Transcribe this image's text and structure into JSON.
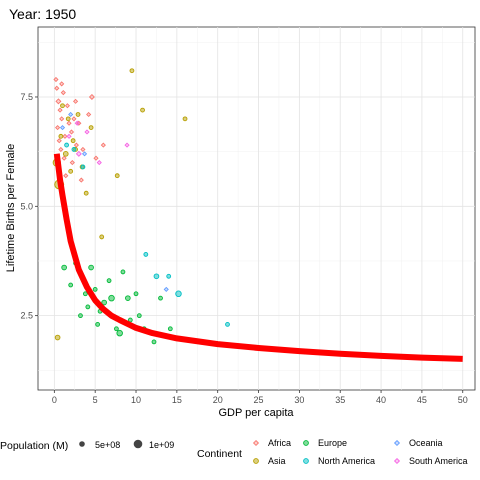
{
  "chart_data": {
    "type": "scatter",
    "title": "Year: 1950",
    "xlabel": "GDP per capita",
    "ylabel": "Lifetime Births per Female",
    "xlim": [
      -2,
      51.5
    ],
    "ylim": [
      0.8,
      9.1
    ],
    "x_ticks": [
      0,
      5,
      10,
      15,
      20,
      25,
      30,
      35,
      40,
      45,
      50
    ],
    "x_tick_labels": [
      "0",
      "5",
      "10",
      "15",
      "20",
      "25",
      "30",
      "35",
      "40",
      "45",
      "50"
    ],
    "y_ticks": [
      2.5,
      5.0,
      7.5
    ],
    "y_tick_labels": [
      "2.5",
      "5.0",
      "7.5"
    ],
    "grid": true,
    "legend_position": "bottom",
    "size_legend": {
      "title": "Population (M)",
      "entries": [
        {
          "label": "5e+08",
          "value": 500000000
        },
        {
          "label": "1e+09",
          "value": 1000000000
        }
      ]
    },
    "color_legend": {
      "title": "Continent",
      "entries": [
        {
          "name": "Africa",
          "color": "#F8766D",
          "shape": "diamond"
        },
        {
          "name": "Asia",
          "color": "#B79F00",
          "shape": "circle"
        },
        {
          "name": "Europe",
          "color": "#00BA38",
          "shape": "circle"
        },
        {
          "name": "North America",
          "color": "#00BFC4",
          "shape": "circle"
        },
        {
          "name": "Oceania",
          "color": "#619CFF",
          "shape": "diamond"
        },
        {
          "name": "South America",
          "color": "#F564E3",
          "shape": "diamond"
        }
      ]
    },
    "trend_line": {
      "color": "#FF0000",
      "points": [
        [
          0.3,
          6.2
        ],
        [
          0.7,
          5.6
        ],
        [
          1.0,
          5.25
        ],
        [
          1.5,
          4.7
        ],
        [
          2.0,
          4.2
        ],
        [
          3.0,
          3.55
        ],
        [
          4.0,
          3.15
        ],
        [
          5.0,
          2.85
        ],
        [
          6.0,
          2.65
        ],
        [
          7.0,
          2.5
        ],
        [
          8.0,
          2.4
        ],
        [
          10.0,
          2.22
        ],
        [
          12.0,
          2.1
        ],
        [
          15.0,
          1.98
        ],
        [
          20.0,
          1.85
        ],
        [
          25.0,
          1.76
        ],
        [
          30.0,
          1.69
        ],
        [
          35.0,
          1.63
        ],
        [
          40.0,
          1.58
        ],
        [
          45.0,
          1.54
        ],
        [
          50.0,
          1.51
        ]
      ]
    },
    "points": [
      {
        "continent": "Africa",
        "x": 0.2,
        "y": 7.9,
        "size": 1
      },
      {
        "continent": "Africa",
        "x": 0.3,
        "y": 7.7,
        "size": 1
      },
      {
        "continent": "Africa",
        "x": 0.5,
        "y": 7.4,
        "size": 1.5
      },
      {
        "continent": "Africa",
        "x": 0.7,
        "y": 7.2,
        "size": 1
      },
      {
        "continent": "Africa",
        "x": 0.9,
        "y": 7.0,
        "size": 1
      },
      {
        "continent": "Africa",
        "x": 0.4,
        "y": 6.8,
        "size": 1
      },
      {
        "continent": "Africa",
        "x": 1.1,
        "y": 7.6,
        "size": 1
      },
      {
        "continent": "Africa",
        "x": 1.3,
        "y": 6.6,
        "size": 1
      },
      {
        "continent": "Africa",
        "x": 0.6,
        "y": 6.5,
        "size": 1
      },
      {
        "continent": "Africa",
        "x": 1.6,
        "y": 7.3,
        "size": 1
      },
      {
        "continent": "Africa",
        "x": 1.8,
        "y": 6.9,
        "size": 1
      },
      {
        "continent": "Africa",
        "x": 0.8,
        "y": 6.3,
        "size": 1
      },
      {
        "continent": "Africa",
        "x": 2.1,
        "y": 6.7,
        "size": 1
      },
      {
        "continent": "Africa",
        "x": 2.4,
        "y": 7.0,
        "size": 1
      },
      {
        "continent": "Africa",
        "x": 1.2,
        "y": 6.1,
        "size": 1
      },
      {
        "continent": "Africa",
        "x": 2.7,
        "y": 6.4,
        "size": 1
      },
      {
        "continent": "Africa",
        "x": 3.0,
        "y": 6.9,
        "size": 1
      },
      {
        "continent": "Africa",
        "x": 0.5,
        "y": 5.9,
        "size": 1
      },
      {
        "continent": "Africa",
        "x": 3.5,
        "y": 6.3,
        "size": 1
      },
      {
        "continent": "Africa",
        "x": 4.2,
        "y": 7.1,
        "size": 1
      },
      {
        "continent": "Africa",
        "x": 4.6,
        "y": 7.5,
        "size": 1.5
      },
      {
        "continent": "Africa",
        "x": 1.4,
        "y": 5.7,
        "size": 1
      },
      {
        "continent": "Africa",
        "x": 2.2,
        "y": 6.0,
        "size": 1
      },
      {
        "continent": "Africa",
        "x": 3.3,
        "y": 5.6,
        "size": 1
      },
      {
        "continent": "Africa",
        "x": 5.1,
        "y": 6.1,
        "size": 1
      },
      {
        "continent": "Africa",
        "x": 6.0,
        "y": 6.4,
        "size": 1
      },
      {
        "continent": "Africa",
        "x": 0.9,
        "y": 7.8,
        "size": 1
      },
      {
        "continent": "Africa",
        "x": 2.6,
        "y": 7.4,
        "size": 1
      },
      {
        "continent": "Asia",
        "x": 0.3,
        "y": 6.0,
        "size": 3
      },
      {
        "continent": "Asia",
        "x": 0.6,
        "y": 5.5,
        "size": 4
      },
      {
        "continent": "Asia",
        "x": 0.8,
        "y": 6.6,
        "size": 1
      },
      {
        "continent": "Asia",
        "x": 1.0,
        "y": 7.3,
        "size": 1
      },
      {
        "continent": "Asia",
        "x": 1.4,
        "y": 6.2,
        "size": 1.5
      },
      {
        "continent": "Asia",
        "x": 1.7,
        "y": 7.0,
        "size": 1
      },
      {
        "continent": "Asia",
        "x": 2.0,
        "y": 5.8,
        "size": 1
      },
      {
        "continent": "Asia",
        "x": 2.3,
        "y": 6.5,
        "size": 1
      },
      {
        "continent": "Asia",
        "x": 2.9,
        "y": 7.1,
        "size": 1
      },
      {
        "continent": "Asia",
        "x": 3.4,
        "y": 5.9,
        "size": 1
      },
      {
        "continent": "Asia",
        "x": 3.9,
        "y": 5.3,
        "size": 1
      },
      {
        "continent": "Asia",
        "x": 4.5,
        "y": 6.8,
        "size": 1
      },
      {
        "continent": "Asia",
        "x": 5.8,
        "y": 4.3,
        "size": 1
      },
      {
        "continent": "Asia",
        "x": 7.7,
        "y": 5.7,
        "size": 1
      },
      {
        "continent": "Asia",
        "x": 9.5,
        "y": 8.1,
        "size": 1
      },
      {
        "continent": "Asia",
        "x": 10.8,
        "y": 7.2,
        "size": 1
      },
      {
        "continent": "Asia",
        "x": 16.0,
        "y": 7.0,
        "size": 1
      },
      {
        "continent": "Asia",
        "x": 0.4,
        "y": 2.0,
        "size": 1.5
      },
      {
        "continent": "Asia",
        "x": 1.2,
        "y": 5.0,
        "size": 1
      },
      {
        "continent": "Asia",
        "x": 2.6,
        "y": 6.3,
        "size": 1
      },
      {
        "continent": "Europe",
        "x": 1.2,
        "y": 3.6,
        "size": 1.5
      },
      {
        "continent": "Europe",
        "x": 2.6,
        "y": 3.7,
        "size": 1
      },
      {
        "continent": "Europe",
        "x": 3.2,
        "y": 2.5,
        "size": 1
      },
      {
        "continent": "Europe",
        "x": 3.8,
        "y": 3.0,
        "size": 1
      },
      {
        "continent": "Europe",
        "x": 4.5,
        "y": 3.6,
        "size": 1.5
      },
      {
        "continent": "Europe",
        "x": 5.0,
        "y": 3.1,
        "size": 1
      },
      {
        "continent": "Europe",
        "x": 5.6,
        "y": 2.6,
        "size": 1
      },
      {
        "continent": "Europe",
        "x": 6.1,
        "y": 2.8,
        "size": 1.5
      },
      {
        "continent": "Europe",
        "x": 6.7,
        "y": 3.3,
        "size": 1
      },
      {
        "continent": "Europe",
        "x": 7.0,
        "y": 2.9,
        "size": 2
      },
      {
        "continent": "Europe",
        "x": 7.6,
        "y": 2.2,
        "size": 1
      },
      {
        "continent": "Europe",
        "x": 8.0,
        "y": 2.1,
        "size": 2
      },
      {
        "continent": "Europe",
        "x": 8.4,
        "y": 3.5,
        "size": 1
      },
      {
        "continent": "Europe",
        "x": 9.0,
        "y": 2.9,
        "size": 1.5
      },
      {
        "continent": "Europe",
        "x": 9.3,
        "y": 2.4,
        "size": 1
      },
      {
        "continent": "Europe",
        "x": 10.0,
        "y": 3.0,
        "size": 1
      },
      {
        "continent": "Europe",
        "x": 10.4,
        "y": 2.5,
        "size": 1
      },
      {
        "continent": "Europe",
        "x": 11.0,
        "y": 2.2,
        "size": 1
      },
      {
        "continent": "Europe",
        "x": 12.2,
        "y": 1.9,
        "size": 1
      },
      {
        "continent": "Europe",
        "x": 13.0,
        "y": 2.9,
        "size": 1
      },
      {
        "continent": "Europe",
        "x": 14.2,
        "y": 2.2,
        "size": 1
      },
      {
        "continent": "Europe",
        "x": 4.1,
        "y": 2.7,
        "size": 1
      },
      {
        "continent": "Europe",
        "x": 2.0,
        "y": 3.2,
        "size": 1
      },
      {
        "continent": "Europe",
        "x": 5.3,
        "y": 2.3,
        "size": 1
      },
      {
        "continent": "North America",
        "x": 1.5,
        "y": 6.4,
        "size": 1
      },
      {
        "continent": "North America",
        "x": 2.4,
        "y": 6.3,
        "size": 1
      },
      {
        "continent": "North America",
        "x": 3.5,
        "y": 5.9,
        "size": 1
      },
      {
        "continent": "North America",
        "x": 11.2,
        "y": 3.9,
        "size": 1
      },
      {
        "continent": "North America",
        "x": 12.5,
        "y": 3.4,
        "size": 1.5
      },
      {
        "continent": "North America",
        "x": 14.0,
        "y": 3.4,
        "size": 1
      },
      {
        "continent": "North America",
        "x": 15.2,
        "y": 3.0,
        "size": 2
      },
      {
        "continent": "North America",
        "x": 21.2,
        "y": 2.3,
        "size": 1
      },
      {
        "continent": "Oceania",
        "x": 1.0,
        "y": 6.8,
        "size": 1
      },
      {
        "continent": "Oceania",
        "x": 2.0,
        "y": 7.1,
        "size": 1
      },
      {
        "continent": "Oceania",
        "x": 3.7,
        "y": 6.2,
        "size": 1
      },
      {
        "continent": "Oceania",
        "x": 13.7,
        "y": 3.1,
        "size": 1
      },
      {
        "continent": "South America",
        "x": 1.8,
        "y": 6.6,
        "size": 1
      },
      {
        "continent": "South America",
        "x": 2.8,
        "y": 6.9,
        "size": 1
      },
      {
        "continent": "South America",
        "x": 3.0,
        "y": 6.2,
        "size": 1.5
      },
      {
        "continent": "South America",
        "x": 4.0,
        "y": 6.7,
        "size": 1
      },
      {
        "continent": "South America",
        "x": 5.5,
        "y": 6.0,
        "size": 1
      },
      {
        "continent": "South America",
        "x": 8.9,
        "y": 6.4,
        "size": 1
      }
    ]
  }
}
